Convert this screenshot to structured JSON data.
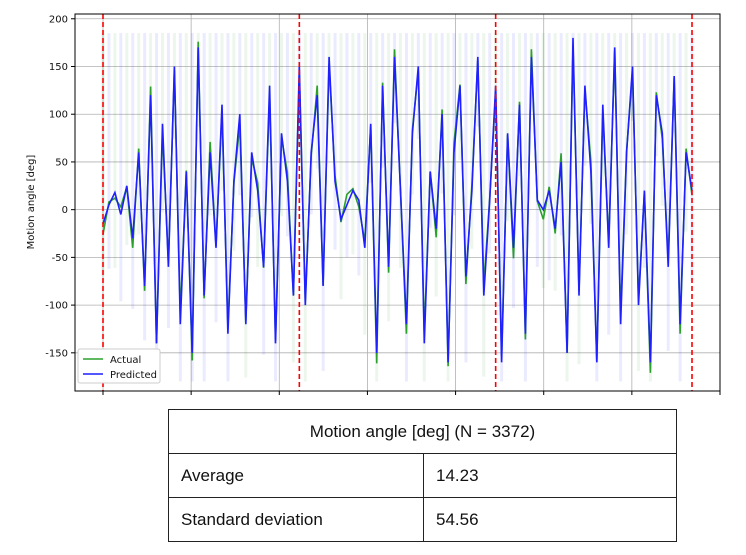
{
  "chart_data": {
    "type": "line",
    "title": "",
    "xlabel": "",
    "ylabel": "Motion angle [deg]",
    "ylim": [
      -190,
      205
    ],
    "yticks": [
      -150,
      -100,
      -50,
      0,
      50,
      100,
      150,
      200
    ],
    "grid": true,
    "legend": {
      "placement": "bottom-left",
      "entries": [
        "Actual",
        "Predicted"
      ]
    },
    "series": [
      {
        "name": "Actual",
        "color": "#2ca02c"
      },
      {
        "name": "Predicted",
        "color": "#1f1fff"
      }
    ],
    "segment_boundaries": {
      "count": 4,
      "style": "dashed",
      "color": "#ff0000"
    },
    "uncertainty_bands": {
      "Actual": "#2ca02c",
      "Predicted": "#1f1fff"
    },
    "ypoints": [
      -15,
      5,
      18,
      -5,
      25,
      -30,
      60,
      -80,
      120,
      -140,
      90,
      -60,
      150,
      -120,
      40,
      -150,
      170,
      -90,
      60,
      -40,
      110,
      -130,
      30,
      100,
      -120,
      60,
      20,
      -60,
      130,
      -140,
      80,
      30,
      -90,
      150,
      -100,
      60,
      120,
      -80,
      160,
      30,
      -10,
      5,
      20,
      10,
      -40,
      90,
      -150,
      130,
      -60,
      160,
      20,
      -120,
      80,
      150,
      -140,
      40,
      -20,
      100,
      -160,
      60,
      130,
      -70,
      20,
      160,
      -90,
      10,
      130,
      -160,
      80,
      -40,
      110,
      -130,
      160,
      10,
      0,
      20,
      -20,
      50,
      -150,
      180,
      -90,
      130,
      40,
      -160,
      110,
      -40,
      170,
      -120,
      60,
      150,
      -100,
      20,
      -160,
      120,
      80,
      -60,
      140,
      -120,
      60,
      20
    ]
  },
  "table": {
    "header": "Motion angle [deg] (N = 3372)",
    "rows": [
      {
        "label": "Average",
        "value": "14.23"
      },
      {
        "label": "Standard deviation",
        "value": "54.56"
      }
    ]
  }
}
